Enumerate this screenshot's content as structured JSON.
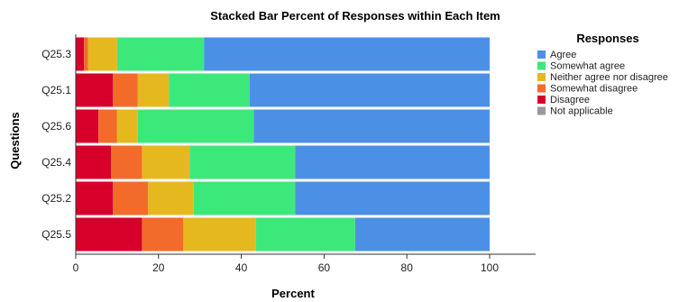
{
  "chart_data": {
    "type": "bar",
    "orientation": "horizontal",
    "stacked": true,
    "title": "Stacked Bar Percent of Responses within Each Item",
    "xlabel": "Percent",
    "ylabel": "Questions",
    "xlim": [
      0,
      100
    ],
    "xticks": [
      0,
      20,
      40,
      60,
      80,
      100
    ],
    "grid": false,
    "legend_position": "right",
    "legend_title": "Responses",
    "categories": [
      "Q25.3",
      "Q25.1",
      "Q25.6",
      "Q25.4",
      "Q25.2",
      "Q25.5"
    ],
    "series": [
      {
        "name": "Disagree",
        "color": "#d6002a",
        "values": [
          2.0,
          9.0,
          5.5,
          8.5,
          9.0,
          16.0
        ]
      },
      {
        "name": "Somewhat disagree",
        "color": "#f26b2b",
        "values": [
          1.0,
          6.0,
          4.5,
          7.5,
          8.5,
          10.0
        ]
      },
      {
        "name": "Neither agree nor disagree",
        "color": "#e6b81f",
        "values": [
          7.0,
          7.5,
          5.0,
          11.5,
          11.0,
          17.5
        ]
      },
      {
        "name": "Somewhat agree",
        "color": "#3ce87a",
        "values": [
          21.0,
          19.5,
          28.0,
          25.5,
          24.5,
          24.0
        ]
      },
      {
        "name": "Agree",
        "color": "#4c90e6",
        "values": [
          69.0,
          58.0,
          57.0,
          47.0,
          47.0,
          32.5
        ]
      },
      {
        "name": "Not applicable",
        "color": "#999999",
        "values": [
          0,
          0,
          0,
          0,
          0,
          0
        ]
      }
    ],
    "legend_order": [
      "Agree",
      "Somewhat agree",
      "Neither agree nor disagree",
      "Somewhat disagree",
      "Disagree",
      "Not applicable"
    ]
  }
}
